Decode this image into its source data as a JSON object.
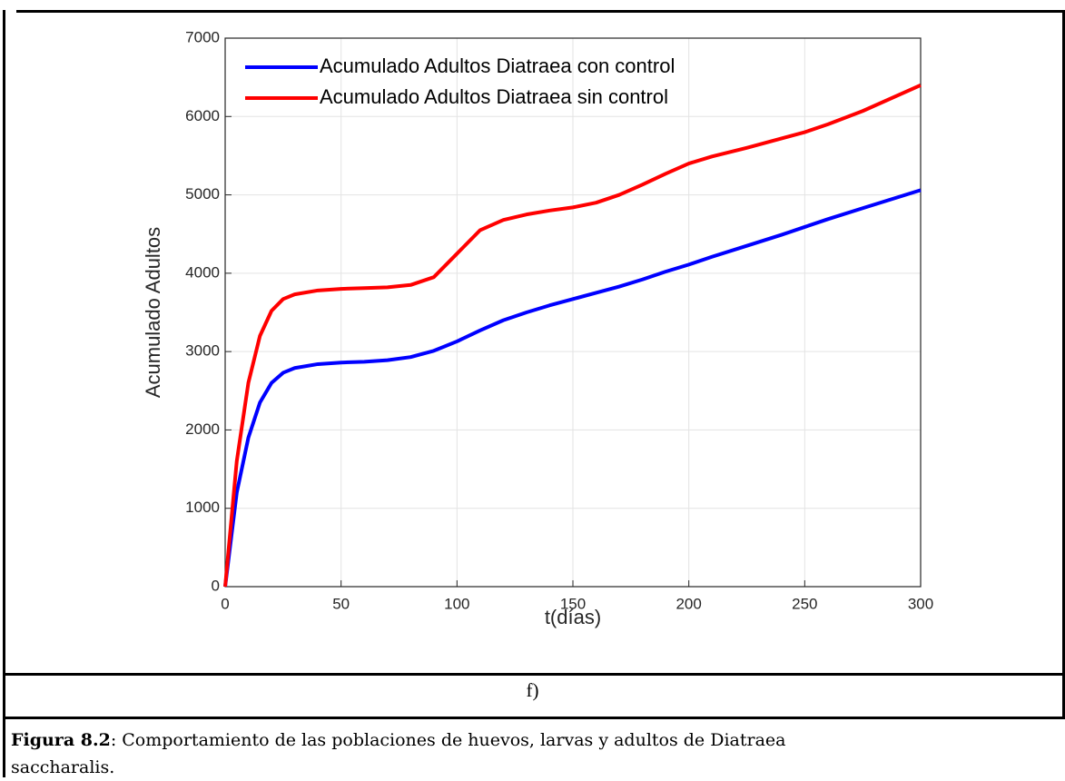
{
  "chart_data": {
    "type": "line",
    "xlabel": "t(días)",
    "ylabel": "Acumulado Adultos",
    "x": [
      0,
      5,
      10,
      15,
      20,
      25,
      30,
      40,
      50,
      60,
      70,
      80,
      90,
      100,
      110,
      120,
      130,
      140,
      150,
      160,
      170,
      180,
      190,
      200,
      210,
      225,
      240,
      250,
      260,
      275,
      300
    ],
    "series": [
      {
        "name": "Acumulado Adultos Diatraea con control",
        "color": "#0000ff",
        "values": [
          0,
          1200,
          1900,
          2350,
          2600,
          2730,
          2790,
          2840,
          2860,
          2870,
          2890,
          2930,
          3010,
          3130,
          3270,
          3400,
          3500,
          3590,
          3670,
          3750,
          3830,
          3920,
          4020,
          4110,
          4210,
          4350,
          4490,
          4590,
          4690,
          4830,
          5060
        ]
      },
      {
        "name": "Acumulado Adultos Diatraea sin control",
        "color": "#ff0000",
        "values": [
          0,
          1600,
          2600,
          3200,
          3520,
          3670,
          3730,
          3780,
          3800,
          3810,
          3820,
          3850,
          3950,
          4250,
          4550,
          4680,
          4750,
          4800,
          4840,
          4900,
          5000,
          5130,
          5270,
          5400,
          5490,
          5600,
          5720,
          5800,
          5900,
          6070,
          6400
        ]
      }
    ],
    "xlim": [
      0,
      300
    ],
    "xticks": [
      0,
      50,
      100,
      150,
      200,
      250,
      300
    ],
    "ylim": [
      0,
      7000
    ],
    "yticks": [
      0,
      1000,
      2000,
      3000,
      4000,
      5000,
      6000,
      7000
    ],
    "grid": true,
    "legend": "upper left"
  },
  "panel_label": "f)",
  "caption": {
    "label": "Figura 8.2",
    "text": ": Comportamiento de las poblaciones de huevos, larvas y adultos de Diatraea saccharalis."
  }
}
